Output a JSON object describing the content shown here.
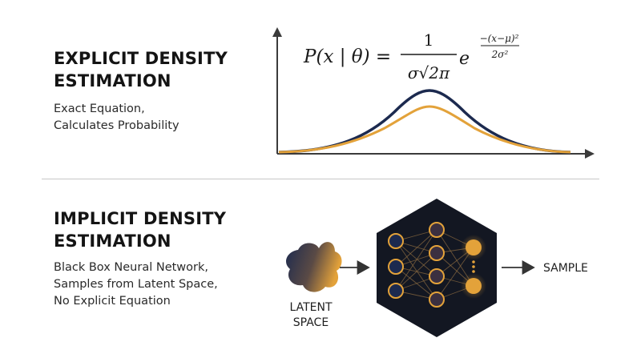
{
  "explicit": {
    "title_line1": "EXPLICIT DENSITY",
    "title_line2": "ESTIMATION",
    "desc_line1": "Exact Equation,",
    "desc_line2": "Calculates Probability"
  },
  "formula": {
    "lhs": "P(x | θ) =",
    "numerator": "1",
    "denominator": "σ√2π",
    "exp_base": "e",
    "exp_num": "−(x−μ)²",
    "exp_den": "2σ²"
  },
  "implicit": {
    "title_line1": "IMPLICIT DENSITY",
    "title_line2": "ESTIMATION",
    "desc_line1": "Black Box Neural Network,",
    "desc_line2": "Samples from Latent Space,",
    "desc_line3": "No Explicit Equation"
  },
  "latent": {
    "line1": "LATENT",
    "line2": "SPACE"
  },
  "output_label": "SAMPLE",
  "colors": {
    "navy": "#1c2a4f",
    "orange": "#e3a23a",
    "dark": "#151a24",
    "hex_bg": "#131722"
  },
  "icons": [
    "latent-blob-icon",
    "arrow-right-icon",
    "neural-network-icon"
  ]
}
